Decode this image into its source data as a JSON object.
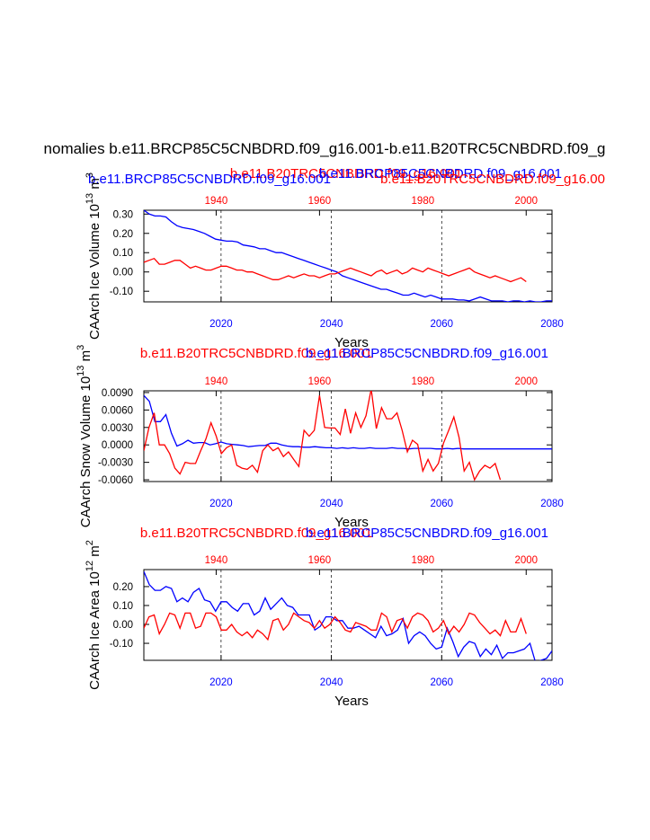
{
  "page": {
    "main_title": "nomalies b.e11.BRCP85C5CNBDRD.f09_g16.001-b.e11.B20TRC5CNBDRD.f09_g",
    "colors": {
      "rcp": "#0000ff",
      "trc": "#ff0000",
      "axis": "#000000"
    }
  },
  "chart_data": [
    {
      "type": "line",
      "panel_id": "ice-volume",
      "title_top": "b.e11.B20TRC5CNBDRD.f09_g16.001",
      "title_top_overlap": "b.e11.BRCP85C5CNBDRD.f09_g16.001",
      "title_second_blue": "b.e11.BRCP85C5CNBDRD.f09_g16.001",
      "title_second_red": "b.e11.B20TRC5CNBDRD.f09_g16.00",
      "ylabel": "CAArch Ice Volume 10",
      "ylabel_exp": "13",
      "ylabel_unit": "m",
      "ylabel_unit_exp": "3",
      "xlabel": "Years",
      "ylim": [
        -0.155,
        0.32
      ],
      "yticks": [
        0.3,
        0.2,
        0.1,
        0.0,
        -0.1
      ],
      "ytick_labels": [
        "0.30",
        "0.20",
        "0.10",
        "0.00",
        "-0.10"
      ],
      "top_axis": {
        "range": [
          1926,
          2005
        ],
        "ticks": [
          1940,
          1960,
          1980,
          2000
        ],
        "labels": [
          "1940",
          "1960",
          "1980",
          "2000"
        ]
      },
      "bottom_axis": {
        "range": [
          2006,
          2080
        ],
        "ticks": [
          2020,
          2040,
          2060,
          2080
        ],
        "labels": [
          "2020",
          "2040",
          "2060",
          "2080"
        ]
      },
      "gridlines_x": [
        2020,
        2040,
        2060
      ],
      "series": [
        {
          "name": "b.e11.BRCP85C5CNBDRD.f09_g16.001",
          "color": "#0000ff",
          "x_start": 2006,
          "values": [
            0.32,
            0.3,
            0.29,
            0.29,
            0.285,
            0.26,
            0.24,
            0.23,
            0.225,
            0.22,
            0.21,
            0.2,
            0.185,
            0.17,
            0.165,
            0.16,
            0.16,
            0.155,
            0.14,
            0.135,
            0.13,
            0.12,
            0.12,
            0.11,
            0.1,
            0.1,
            0.09,
            0.08,
            0.07,
            0.06,
            0.05,
            0.04,
            0.03,
            0.02,
            0.01,
            0.0,
            -0.02,
            -0.03,
            -0.04,
            -0.05,
            -0.06,
            -0.07,
            -0.08,
            -0.09,
            -0.09,
            -0.1,
            -0.11,
            -0.12,
            -0.12,
            -0.11,
            -0.12,
            -0.13,
            -0.12,
            -0.13,
            -0.14,
            -0.14,
            -0.14,
            -0.145,
            -0.145,
            -0.15,
            -0.14,
            -0.13,
            -0.14,
            -0.15,
            -0.15,
            -0.15,
            -0.155,
            -0.15,
            -0.15,
            -0.155,
            -0.15,
            -0.155,
            -0.155,
            -0.15,
            -0.15
          ]
        },
        {
          "name": "b.e11.B20TRC5CNBDRD.f09_g16.001",
          "color": "#ff0000",
          "x_start": 1926,
          "values": [
            0.05,
            0.06,
            0.07,
            0.04,
            0.04,
            0.05,
            0.06,
            0.06,
            0.04,
            0.02,
            0.03,
            0.02,
            0.01,
            0.01,
            0.02,
            0.03,
            0.03,
            0.02,
            0.01,
            0.01,
            0.0,
            0.0,
            -0.01,
            -0.02,
            -0.03,
            -0.04,
            -0.04,
            -0.03,
            -0.02,
            -0.03,
            -0.02,
            -0.01,
            -0.02,
            -0.02,
            -0.03,
            -0.02,
            -0.01,
            -0.01,
            0.0,
            0.01,
            0.02,
            0.01,
            0.0,
            -0.01,
            -0.02,
            0.0,
            0.01,
            -0.01,
            0.0,
            0.01,
            -0.01,
            0.0,
            0.02,
            0.01,
            0.0,
            0.02,
            0.01,
            0.0,
            -0.01,
            -0.02,
            -0.01,
            0.0,
            0.01,
            0.02,
            0.0,
            -0.01,
            -0.02,
            -0.03,
            -0.02,
            -0.03,
            -0.04,
            -0.05,
            -0.04,
            -0.03,
            -0.05
          ]
        }
      ]
    },
    {
      "type": "line",
      "panel_id": "snow-volume",
      "title_top": "b.e11.B20TRC5CNBDRD.f09_g16.001",
      "title_top_overlap": "b.e11.BRCP85C5CNBDRD.f09_g16.001",
      "ylabel": "CAArch Snow Volume 10",
      "ylabel_exp": "13",
      "ylabel_unit": "m",
      "ylabel_unit_exp": "3",
      "xlabel": "Years",
      "ylim": [
        -0.0063,
        0.0093
      ],
      "yticks": [
        0.009,
        0.006,
        0.003,
        0.0,
        -0.003,
        -0.006
      ],
      "ytick_labels": [
        "0.0090",
        "0.0060",
        "0.0030",
        "0.0000",
        "-0.0030",
        "-0.0060"
      ],
      "top_axis": {
        "range": [
          1926,
          2005
        ],
        "ticks": [
          1940,
          1960,
          1980,
          2000
        ],
        "labels": [
          "1940",
          "1960",
          "1980",
          "2000"
        ]
      },
      "bottom_axis": {
        "range": [
          2006,
          2080
        ],
        "ticks": [
          2020,
          2040,
          2060,
          2080
        ],
        "labels": [
          "2020",
          "2040",
          "2060",
          "2080"
        ]
      },
      "gridlines_x": [
        2020,
        2040,
        2060
      ],
      "series": [
        {
          "name": "b.e11.BRCP85C5CNBDRD.f09_g16.001",
          "color": "#0000ff",
          "x_start": 2006,
          "values": [
            0.0085,
            0.0075,
            0.004,
            0.004,
            0.0052,
            0.002,
            -0.0002,
            0.0002,
            0.0008,
            0.0003,
            0.0004,
            0.0004,
            0.0,
            0.0002,
            0.0005,
            0.0002,
            0.0001,
            0.0,
            -0.0001,
            -0.0003,
            -0.0002,
            -0.0001,
            -0.0001,
            0.0003,
            0.0003,
            0.0,
            -0.0002,
            -0.0003,
            -0.0003,
            -0.0004,
            -0.0004,
            -0.0003,
            -0.0004,
            -0.0005,
            -0.0005,
            -0.0006,
            -0.0005,
            -0.0006,
            -0.0005,
            -0.0006,
            -0.0006,
            -0.0005,
            -0.0006,
            -0.0006,
            -0.0006,
            -0.0005,
            -0.0006,
            -0.0006,
            -0.0007,
            -0.0006,
            -0.0006,
            -0.0006,
            -0.0006,
            -0.0007,
            -0.0007,
            -0.0006,
            -0.0007,
            -0.0006,
            -0.0007,
            -0.0007,
            -0.0007,
            -0.0007,
            -0.0007,
            -0.0007,
            -0.0007,
            -0.0007,
            -0.0007,
            -0.0007,
            -0.0007,
            -0.0007,
            -0.0007,
            -0.0007,
            -0.0007,
            -0.0007,
            -0.0007
          ]
        },
        {
          "name": "b.e11.B20TRC5CNBDRD.f09_g16.001",
          "color": "#ff0000",
          "x_start": 1926,
          "values": [
            -0.001,
            0.003,
            0.0055,
            0.0,
            0.0,
            -0.0015,
            -0.004,
            -0.005,
            -0.003,
            -0.0032,
            -0.0032,
            -0.001,
            0.001,
            0.0038,
            0.0015,
            -0.0015,
            -0.0005,
            0.0,
            -0.0035,
            -0.004,
            -0.0042,
            -0.0035,
            -0.0047,
            -0.001,
            0.0,
            -0.001,
            -0.0005,
            -0.002,
            -0.0012,
            -0.0025,
            -0.0037,
            0.0025,
            0.0015,
            0.0025,
            0.0085,
            0.003,
            0.0029,
            0.0029,
            0.0018,
            0.0062,
            0.002,
            0.0055,
            0.003,
            0.005,
            0.0096,
            0.0028,
            0.0064,
            0.0045,
            0.0045,
            0.0055,
            0.0025,
            -0.0012,
            0.0008,
            0.0001,
            -0.0045,
            -0.0025,
            -0.0045,
            -0.0032,
            0.0003,
            0.0025,
            0.0048,
            0.0013,
            -0.0045,
            -0.003,
            -0.006,
            -0.0045,
            -0.0035,
            -0.004,
            -0.0032,
            -0.006
          ]
        }
      ]
    },
    {
      "type": "line",
      "panel_id": "ice-area",
      "title_top": "b.e11.B20TRC5CNBDRD.f09_g16.001",
      "title_top_overlap": "b.e11.BRCP85C5CNBDRD.f09_g16.001",
      "ylabel": "CAArch Ice Area 10",
      "ylabel_exp": "12",
      "ylabel_unit": "m",
      "ylabel_unit_exp": "2",
      "xlabel": "Years",
      "ylim": [
        -0.19,
        0.29
      ],
      "yticks": [
        0.2,
        0.1,
        0.0,
        -0.1
      ],
      "ytick_labels": [
        "0.20",
        "0.10",
        "0.00",
        "-0.10"
      ],
      "top_axis": {
        "range": [
          1926,
          2005
        ],
        "ticks": [
          1940,
          1960,
          1980,
          2000
        ],
        "labels": [
          "1940",
          "1960",
          "1980",
          "2000"
        ]
      },
      "bottom_axis": {
        "range": [
          2006,
          2080
        ],
        "ticks": [
          2020,
          2040,
          2060,
          2080
        ],
        "labels": [
          "2020",
          "2040",
          "2060",
          "2080"
        ]
      },
      "gridlines_x": [
        2020,
        2040,
        2060
      ],
      "series": [
        {
          "name": "b.e11.BRCP85C5CNBDRD.f09_g16.001",
          "color": "#0000ff",
          "x_start": 2006,
          "values": [
            0.28,
            0.21,
            0.18,
            0.18,
            0.2,
            0.19,
            0.12,
            0.14,
            0.12,
            0.17,
            0.19,
            0.13,
            0.12,
            0.07,
            0.12,
            0.12,
            0.09,
            0.07,
            0.11,
            0.11,
            0.05,
            0.07,
            0.14,
            0.08,
            0.11,
            0.14,
            0.1,
            0.09,
            0.05,
            0.05,
            0.05,
            -0.03,
            -0.01,
            0.04,
            0.04,
            0.02,
            0.02,
            -0.02,
            -0.02,
            -0.01,
            -0.03,
            -0.05,
            -0.07,
            -0.01,
            -0.06,
            -0.05,
            -0.03,
            0.03,
            -0.1,
            -0.06,
            -0.04,
            -0.06,
            -0.1,
            -0.13,
            -0.12,
            -0.02,
            -0.09,
            -0.17,
            -0.12,
            -0.09,
            -0.1,
            -0.17,
            -0.13,
            -0.16,
            -0.11,
            -0.18,
            -0.15,
            -0.15,
            -0.14,
            -0.13,
            -0.1,
            -0.2,
            -0.19,
            -0.18,
            -0.14
          ]
        },
        {
          "name": "b.e11.B20TRC5CNBDRD.f09_g16.001",
          "color": "#ff0000",
          "x_start": 1926,
          "values": [
            -0.02,
            0.04,
            0.05,
            -0.05,
            0.0,
            0.06,
            0.05,
            -0.02,
            0.06,
            0.06,
            -0.02,
            -0.01,
            0.06,
            0.06,
            0.04,
            -0.03,
            -0.03,
            0.0,
            -0.04,
            -0.06,
            -0.04,
            -0.07,
            -0.03,
            -0.05,
            -0.08,
            0.02,
            0.03,
            -0.03,
            0.0,
            0.06,
            0.04,
            0.02,
            0.01,
            -0.02,
            0.02,
            -0.02,
            0.0,
            0.04,
            0.01,
            -0.03,
            -0.04,
            0.01,
            0.0,
            -0.01,
            -0.03,
            -0.03,
            0.06,
            0.04,
            -0.04,
            0.02,
            0.03,
            -0.02,
            0.04,
            0.06,
            0.05,
            0.02,
            -0.04,
            -0.02,
            0.02,
            -0.05,
            -0.01,
            -0.04,
            0.0,
            0.06,
            0.05,
            0.01,
            -0.02,
            -0.05,
            -0.03,
            -0.06,
            0.02,
            -0.04,
            -0.04,
            0.03,
            -0.05
          ]
        }
      ]
    }
  ]
}
